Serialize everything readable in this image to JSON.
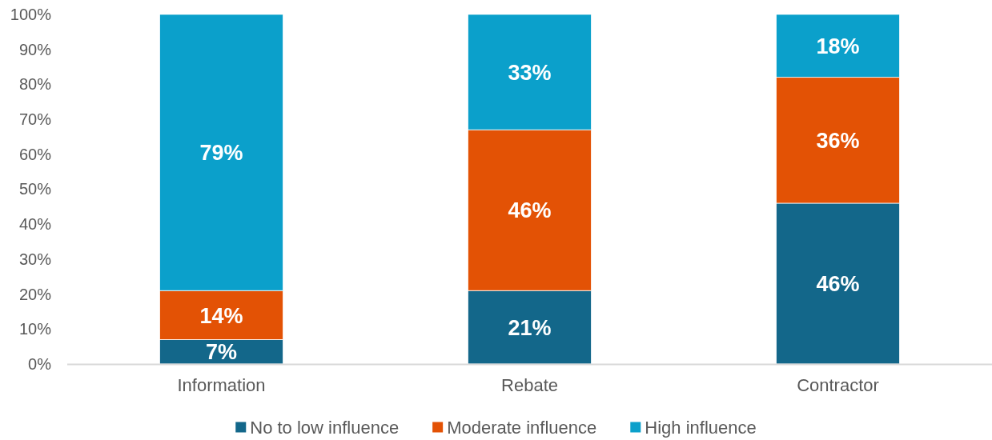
{
  "chart_data": {
    "type": "bar",
    "stacked": true,
    "categories": [
      "Information",
      "Rebate",
      "Contractor"
    ],
    "series": [
      {
        "name": "No to low influence",
        "color": "#13678a",
        "values": [
          7,
          21,
          46
        ],
        "value_labels": [
          "7%",
          "21%",
          "46%"
        ]
      },
      {
        "name": "Moderate influence",
        "color": "#e35205",
        "values": [
          14,
          46,
          36
        ],
        "value_labels": [
          "14%",
          "46%",
          "36%"
        ]
      },
      {
        "name": "High influence",
        "color": "#0ba0cb",
        "values": [
          79,
          33,
          18
        ],
        "value_labels": [
          "79%",
          "33%",
          "18%"
        ]
      }
    ],
    "ylim": [
      0,
      100
    ],
    "yticks": [
      {
        "value": 0,
        "label": "0%"
      },
      {
        "value": 10,
        "label": "10%"
      },
      {
        "value": 20,
        "label": "20%"
      },
      {
        "value": 30,
        "label": "30%"
      },
      {
        "value": 40,
        "label": "40%"
      },
      {
        "value": 50,
        "label": "50%"
      },
      {
        "value": 60,
        "label": "60%"
      },
      {
        "value": 70,
        "label": "70%"
      },
      {
        "value": 80,
        "label": "80%"
      },
      {
        "value": 90,
        "label": "90%"
      },
      {
        "value": 100,
        "label": "100%"
      }
    ],
    "grid": false,
    "legend": "bottom"
  }
}
